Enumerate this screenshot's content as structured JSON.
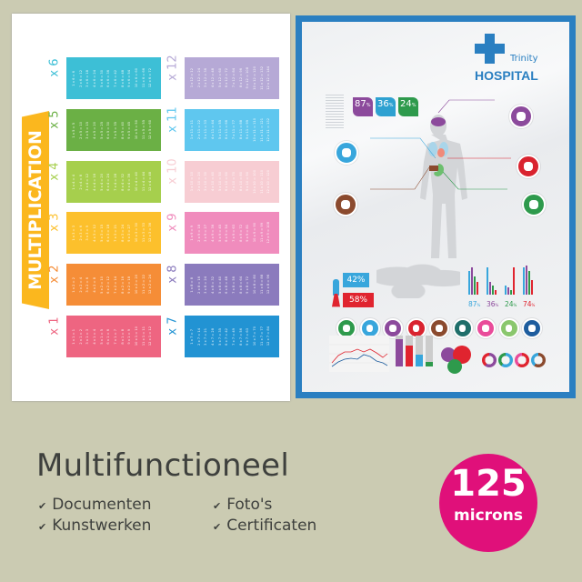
{
  "left_poster": {
    "title": "MULTIPLICATION",
    "tables": [
      {
        "label": "x 1",
        "color": "#ee6581",
        "rows": [
          "1 x 1 = 1",
          "2 x 1 = 2",
          "3 x 1 = 3",
          "4 x 1 = 4",
          "5 x 1 = 5",
          "6 x 1 = 6",
          "7 x 1 = 7",
          "8 x 1 = 8",
          "9 x 1 = 9",
          "10 x 1 = 10",
          "11 x 1 = 11",
          "12 x 1 = 12"
        ]
      },
      {
        "label": "x 2",
        "color": "#f58d37",
        "rows": [
          "1 x 2 = 2",
          "2 x 2 = 4",
          "3 x 2 = 6",
          "4 x 2 = 8",
          "5 x 2 = 10",
          "6 x 2 = 12",
          "7 x 2 = 14",
          "8 x 2 = 16",
          "9 x 2 = 18",
          "10 x 2 = 20",
          "11 x 2 = 22",
          "12 x 2 = 24"
        ]
      },
      {
        "label": "x 3",
        "color": "#fcc02c",
        "rows": [
          "1 x 3 = 3",
          "2 x 3 = 6",
          "3 x 3 = 9",
          "4 x 3 = 12",
          "5 x 3 = 15",
          "6 x 3 = 18",
          "7 x 3 = 21",
          "8 x 3 = 24",
          "9 x 3 = 27",
          "10 x 3 = 30",
          "11 x 3 = 33",
          "12 x 3 = 36"
        ]
      },
      {
        "label": "x 4",
        "color": "#a6cf4d",
        "rows": [
          "1 x 4 = 4",
          "2 x 4 = 8",
          "3 x 4 = 12",
          "4 x 4 = 16",
          "5 x 4 = 20",
          "6 x 4 = 24",
          "7 x 4 = 28",
          "8 x 4 = 32",
          "9 x 4 = 36",
          "10 x 4 = 40",
          "11 x 4 = 44",
          "12 x 4 = 48"
        ]
      },
      {
        "label": "x 5",
        "color": "#6bb045",
        "rows": [
          "1 x 5 = 5",
          "2 x 5 = 10",
          "3 x 5 = 15",
          "4 x 5 = 20",
          "5 x 5 = 25",
          "6 x 5 = 30",
          "7 x 5 = 35",
          "8 x 5 = 40",
          "9 x 5 = 45",
          "10 x 5 = 50",
          "11 x 5 = 55",
          "12 x 5 = 60"
        ]
      },
      {
        "label": "x 6",
        "color": "#3dbfd6",
        "rows": [
          "1 x 6 = 6",
          "2 x 6 = 12",
          "3 x 6 = 18",
          "4 x 6 = 24",
          "5 x 6 = 30",
          "6 x 6 = 36",
          "7 x 6 = 42",
          "8 x 6 = 48",
          "9 x 6 = 54",
          "10 x 6 = 60",
          "11 x 6 = 66",
          "12 x 6 = 72"
        ]
      },
      {
        "label": "x 7",
        "color": "#2293d3",
        "rows": [
          "1 x 7 = 7",
          "2 x 7 = 14",
          "3 x 7 = 21",
          "4 x 7 = 28",
          "5 x 7 = 35",
          "6 x 7 = 42",
          "7 x 7 = 49",
          "8 x 7 = 56",
          "9 x 7 = 63",
          "10 x 7 = 70",
          "11 x 7 = 77",
          "12 x 7 = 84"
        ]
      },
      {
        "label": "x 8",
        "color": "#8b7bbd",
        "rows": [
          "1 x 8 = 8",
          "2 x 8 = 16",
          "3 x 8 = 24",
          "4 x 8 = 32",
          "5 x 8 = 40",
          "6 x 8 = 48",
          "7 x 8 = 56",
          "8 x 8 = 64",
          "9 x 8 = 72",
          "10 x 8 = 80",
          "11 x 8 = 88",
          "12 x 8 = 96"
        ]
      },
      {
        "label": "x 9",
        "color": "#f08cbd",
        "rows": [
          "1 x 9 = 9",
          "2 x 9 = 18",
          "3 x 9 = 27",
          "4 x 9 = 36",
          "5 x 9 = 45",
          "6 x 9 = 54",
          "7 x 9 = 63",
          "8 x 9 = 72",
          "9 x 9 = 81",
          "10 x 9 = 90",
          "11 x 9 = 99",
          "12 x 9 = 108"
        ]
      },
      {
        "label": "x 10",
        "color": "#f7cdd3",
        "rows": [
          "1 x 10 = 10",
          "2 x 10 = 20",
          "3 x 10 = 30",
          "4 x 10 = 40",
          "5 x 10 = 50",
          "6 x 10 = 60",
          "7 x 10 = 70",
          "8 x 10 = 80",
          "9 x 10 = 90",
          "10 x 10 = 100",
          "11 x 10 = 110",
          "12 x 10 = 120"
        ]
      },
      {
        "label": "x 11",
        "color": "#5fc7ef",
        "rows": [
          "1 x 11 = 11",
          "2 x 11 = 22",
          "3 x 11 = 33",
          "4 x 11 = 44",
          "5 x 11 = 55",
          "6 x 11 = 66",
          "7 x 11 = 77",
          "8 x 11 = 88",
          "9 x 11 = 99",
          "10 x 11 = 110",
          "11 x 11 = 121",
          "12 x 11 = 132"
        ]
      },
      {
        "label": "x 12",
        "color": "#b6a9d6",
        "rows": [
          "1 x 12 = 12",
          "2 x 12 = 24",
          "3 x 12 = 36",
          "4 x 12 = 48",
          "5 x 12 = 60",
          "6 x 12 = 72",
          "7 x 12 = 84",
          "8 x 12 = 96",
          "9 x 12 = 108",
          "10 x 12 = 120",
          "11 x 12 = 132",
          "12 x 12 = 144"
        ]
      }
    ]
  },
  "right_poster": {
    "brand_small": "Trinity",
    "brand_large": "HOSPITAL",
    "brand_color": "#2a7fc1",
    "stat_boxes": [
      {
        "value": "87",
        "unit": "%",
        "color": "#8c4a9c"
      },
      {
        "value": "36",
        "unit": "%",
        "color": "#2ea1d1"
      },
      {
        "value": "24",
        "unit": "%",
        "color": "#2e9a4c"
      }
    ],
    "gender": [
      {
        "value": "42%",
        "color": "#38a6dc",
        "icon": "man-icon"
      },
      {
        "value": "58%",
        "color": "#e0242f",
        "icon": "woman-icon"
      }
    ],
    "bar_group_labels": [
      {
        "value": "87",
        "unit": "%",
        "color": "#38a6dc"
      },
      {
        "value": "36",
        "unit": "%",
        "color": "#8c4a9c"
      },
      {
        "value": "24",
        "unit": "%",
        "color": "#2e9a4c"
      },
      {
        "value": "74",
        "unit": "%",
        "color": "#e0242f"
      }
    ],
    "organ_icons": [
      {
        "icon": "stomach-icon",
        "color": "#2e9a4c"
      },
      {
        "icon": "lungs-icon",
        "color": "#38a6dc"
      },
      {
        "icon": "brain-icon",
        "color": "#8c4a9c"
      },
      {
        "icon": "heart-icon",
        "color": "#d9232f"
      },
      {
        "icon": "liver-icon",
        "color": "#8b4a2e"
      },
      {
        "icon": "tooth-icon",
        "color": "#1f6e6a"
      },
      {
        "icon": "heart-love-icon",
        "color": "#e94c9a"
      },
      {
        "icon": "bed-icon",
        "color": "#8ac76d"
      },
      {
        "icon": "apple-icon",
        "color": "#1e5d9e"
      }
    ]
  },
  "footer": {
    "title": "Multifunctioneel",
    "features": [
      "Documenten",
      "Kunstwerken",
      "Foto's",
      "Certificaten"
    ],
    "check_icon": "checkmark-icon",
    "check_glyph": "✔",
    "badge_number": "125",
    "badge_unit": "microns",
    "badge_color": "#e0107a"
  }
}
